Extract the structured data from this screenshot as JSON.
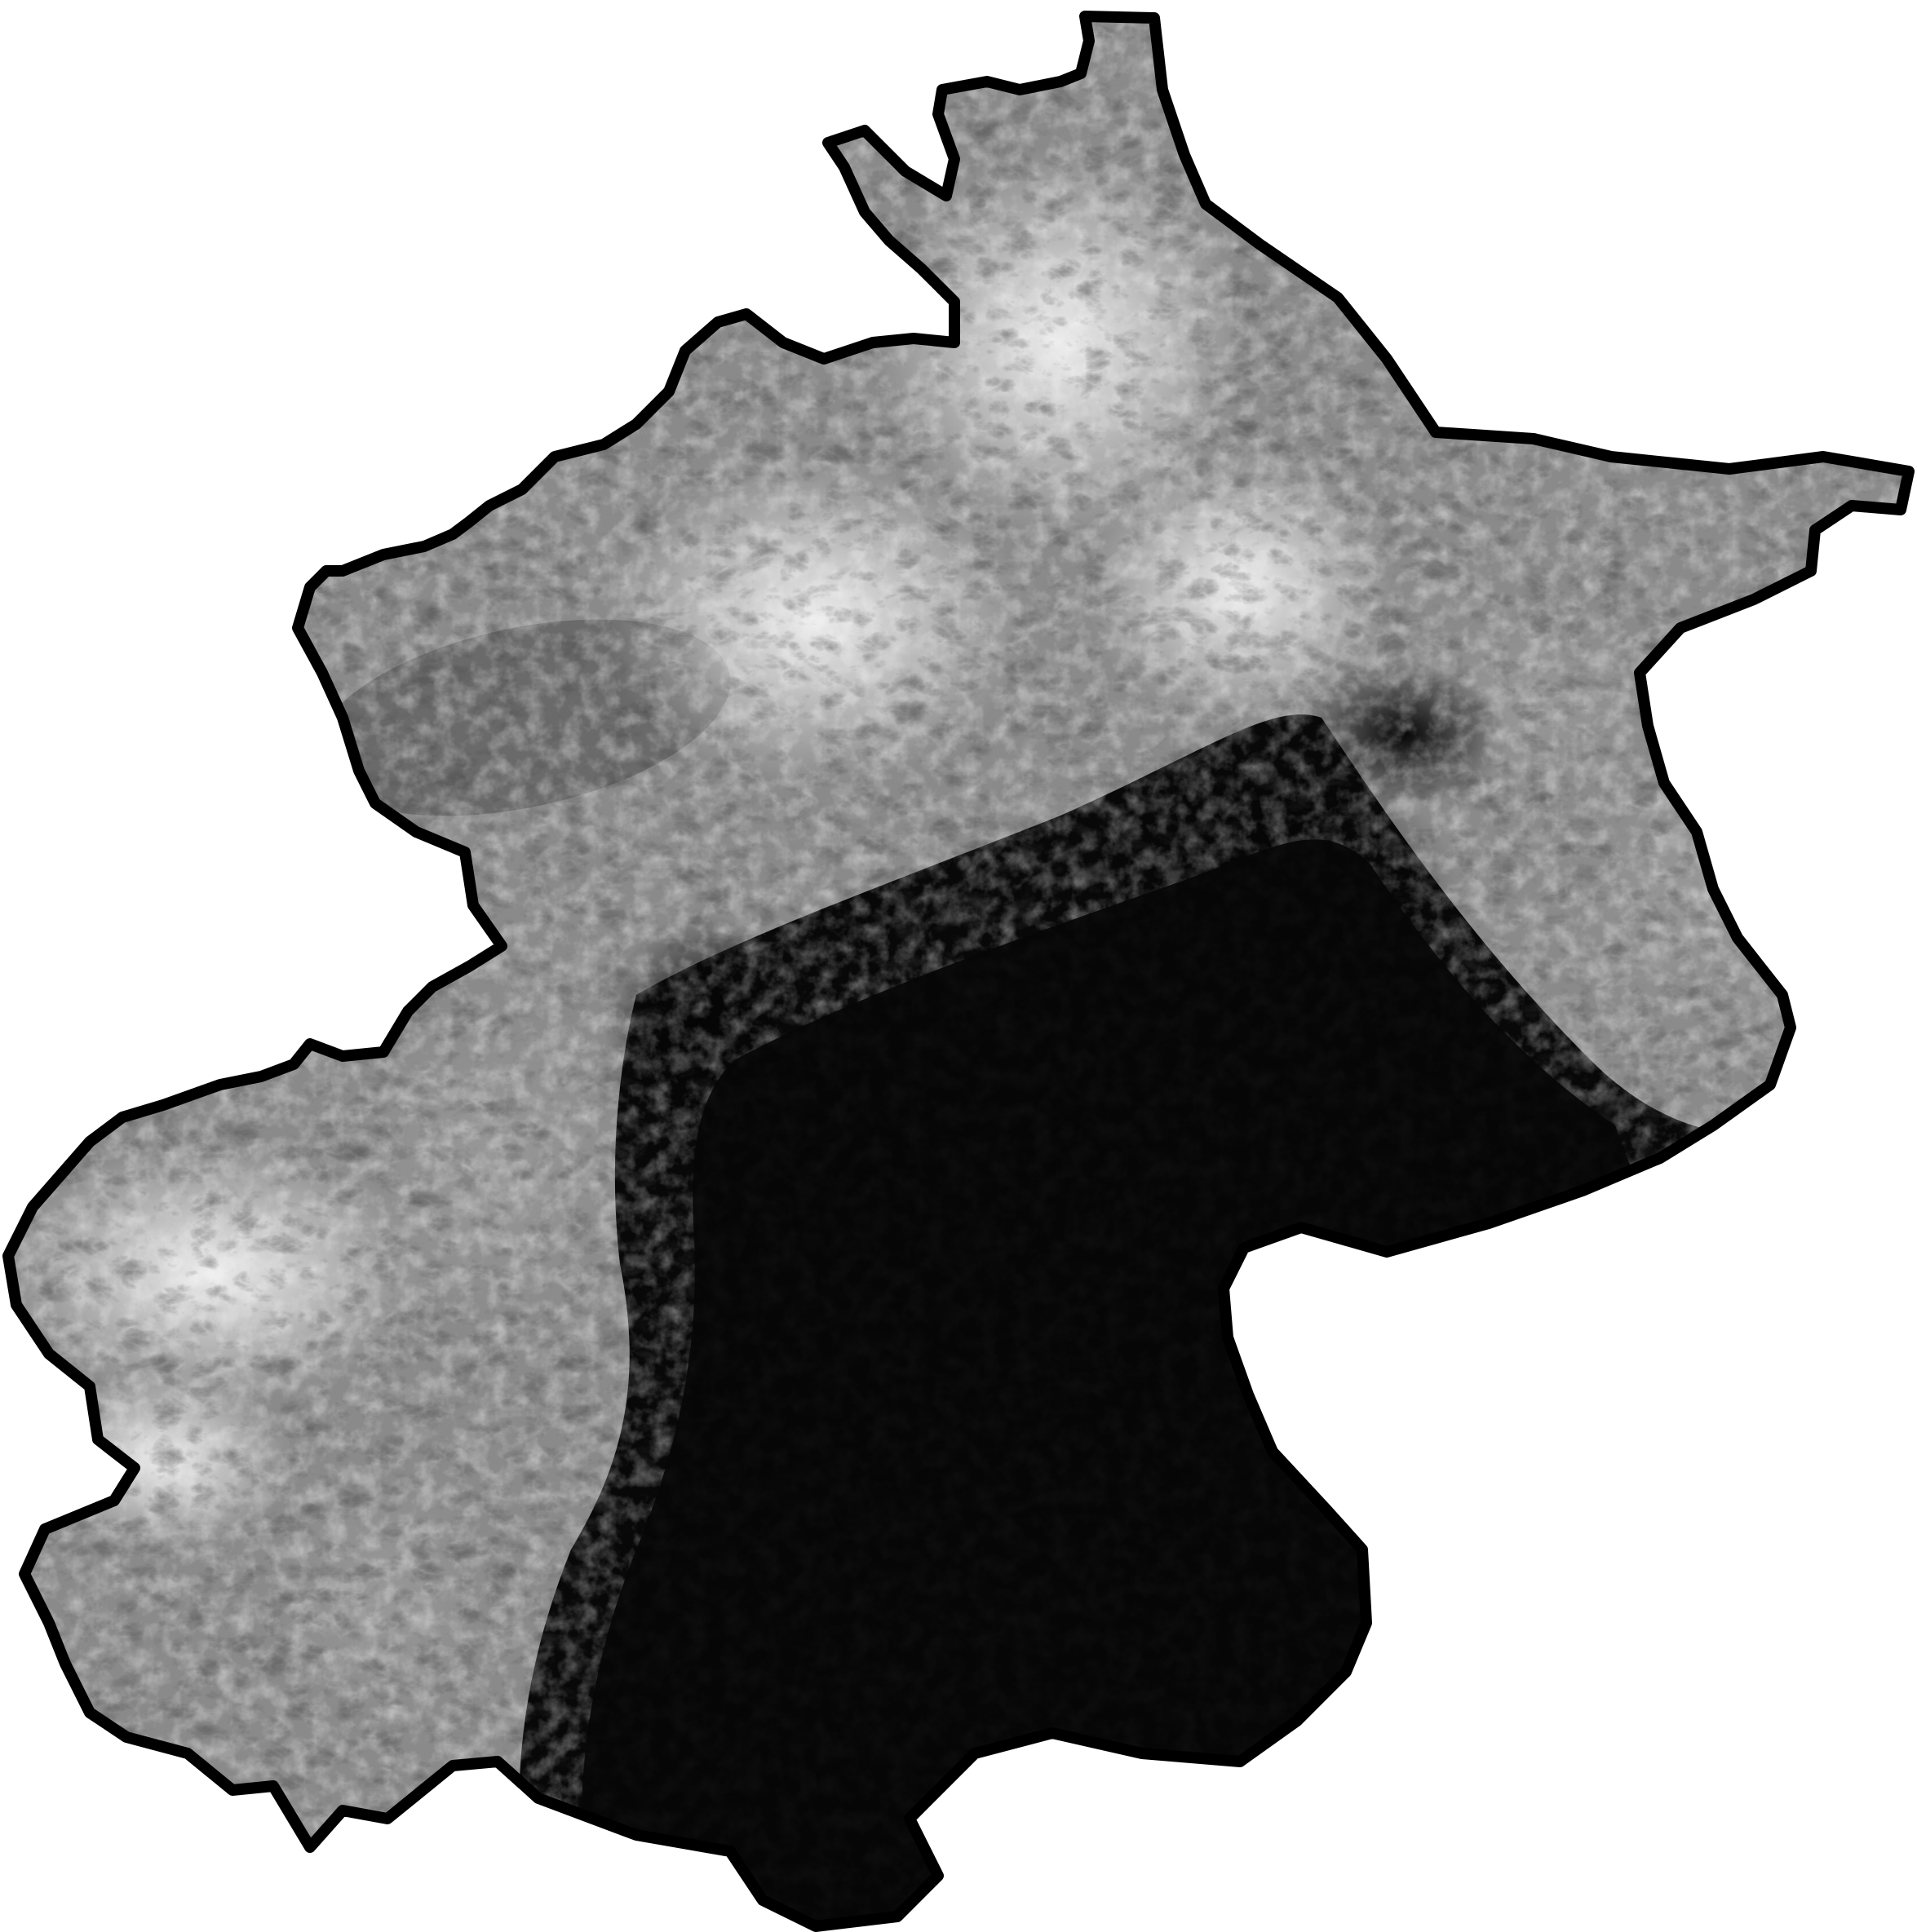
{
  "map": {
    "kind": "elevation-relief",
    "colors": {
      "background": "#ffffff",
      "boundary": "#000000",
      "lowland": "#070707",
      "midland": "#5f5f5f",
      "upland": "#a8a8a8",
      "peak": "#efefef"
    },
    "boundary_icon": "region-outline"
  }
}
